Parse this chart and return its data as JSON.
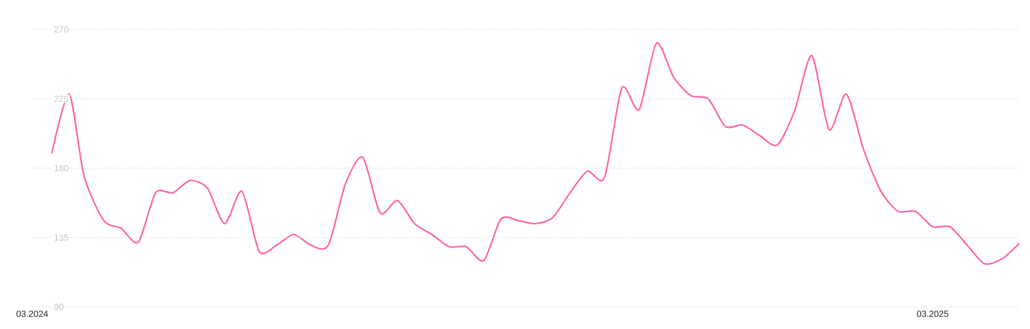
{
  "chart_data": {
    "type": "line",
    "x": [
      "2024-03-09",
      "2024-03-16",
      "2024-03-22",
      "2024-03-30",
      "2024-04-06",
      "2024-04-13",
      "2024-04-20",
      "2024-04-27",
      "2024-05-04",
      "2024-05-11",
      "2024-05-18",
      "2024-05-25",
      "2024-06-01",
      "2024-06-08",
      "2024-06-15",
      "2024-06-22",
      "2024-06-29",
      "2024-07-06",
      "2024-07-13",
      "2024-07-20",
      "2024-07-27",
      "2024-08-03",
      "2024-08-10",
      "2024-08-17",
      "2024-08-24",
      "2024-08-31",
      "2024-09-07",
      "2024-09-14",
      "2024-09-21",
      "2024-09-28",
      "2024-10-05",
      "2024-10-12",
      "2024-10-19",
      "2024-10-26",
      "2024-11-02",
      "2024-11-09",
      "2024-11-16",
      "2024-11-23",
      "2024-11-30",
      "2024-12-07",
      "2024-12-14",
      "2024-12-21",
      "2024-12-28",
      "2025-01-04",
      "2025-01-11",
      "2025-01-18",
      "2025-01-25",
      "2025-02-01",
      "2025-02-08",
      "2025-02-15",
      "2025-02-22",
      "2025-03-01",
      "2025-03-08",
      "2025-03-15",
      "2025-03-22",
      "2025-03-29",
      "2025-04-05"
    ],
    "series": [
      {
        "color": "#ff5fa8",
        "values": [
          190,
          228,
          175,
          146,
          141,
          132,
          164,
          164,
          172,
          167,
          144,
          165,
          126,
          130,
          137,
          130,
          130,
          170,
          187,
          151,
          159,
          144,
          137,
          129,
          129,
          120,
          147,
          146,
          144,
          148,
          164,
          178,
          174,
          232,
          218,
          261,
          239,
          227,
          225,
          207,
          208,
          201,
          195,
          217,
          253,
          205,
          228,
          192,
          165,
          152,
          152,
          142,
          142,
          130,
          118,
          121,
          131
        ]
      }
    ],
    "xlim": [
      "2024-03-01",
      "2025-04-05"
    ],
    "xticks": [
      {
        "value": "2024-03-01",
        "label": "03.2024"
      },
      {
        "value": "2025-03-01",
        "label": "03.2025"
      }
    ],
    "ylim": [
      90,
      270
    ],
    "yticks": [
      90,
      135,
      180,
      225,
      270
    ],
    "grid": "y"
  }
}
